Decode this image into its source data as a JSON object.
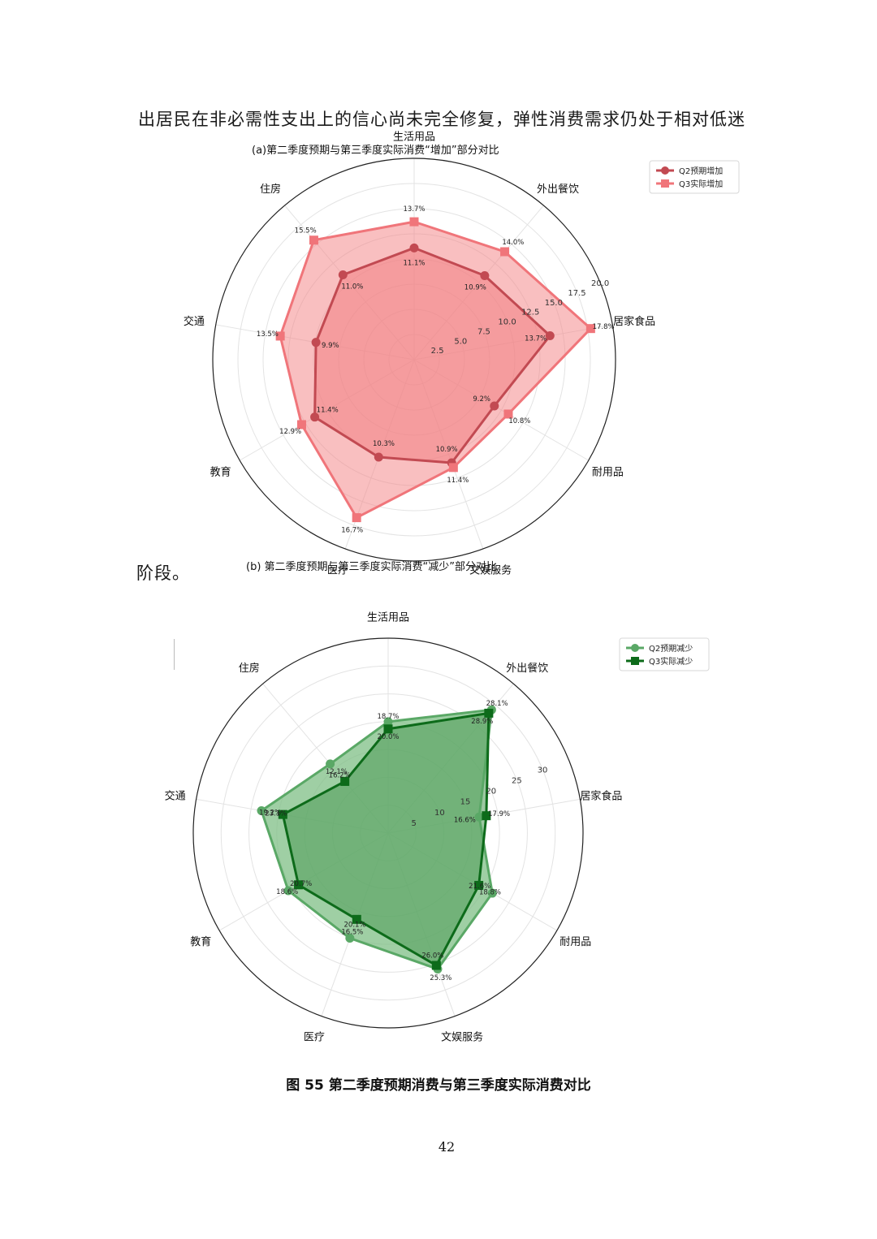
{
  "doc": {
    "paragraph_line": "出居民在非必需性支出上的信心尚未完全修复，弹性消费需求仍处于相对低迷",
    "paragraph_end": "阶段。",
    "figure_caption": "图  55  第二季度预期消费与第三季度实际消费对比",
    "page_number": "42"
  },
  "chart_data": [
    {
      "type": "radar",
      "title": "(a)第二季度预期与第三季度实际消费“增加”部分对比",
      "categories": [
        "生活用品",
        "外出餐饮",
        "居家食品",
        "耐用品",
        "文娱服务",
        "医疗",
        "教育",
        "交通",
        "住房"
      ],
      "rlim": [
        0,
        20
      ],
      "rticks": [
        "2.5",
        "5.0",
        "7.5",
        "10.0",
        "12.5",
        "15.0",
        "17.5",
        "20.0"
      ],
      "legend_position": "top-right",
      "series": [
        {
          "name": "Q2预期增加",
          "marker": "circle",
          "values": [
            11.1,
            10.9,
            13.7,
            9.2,
            10.9,
            10.3,
            11.4,
            9.9,
            11.0
          ],
          "color": "#c24a52",
          "fill": "#ec7276"
        },
        {
          "name": "Q3实际增加",
          "marker": "square",
          "values": [
            13.7,
            14.0,
            17.8,
            10.8,
            11.4,
            16.7,
            12.9,
            13.5,
            15.5
          ],
          "color": "#f0757a",
          "fill": "#f48b8d"
        }
      ],
      "data_labels": {
        "Q2预期增加": [
          "11.1%",
          "10.9%",
          "13.7%",
          "9.2%",
          "10.9%",
          "10.3%",
          "11.4%",
          "9.9%",
          "11.0%"
        ],
        "Q3实际增加": [
          "13.7%",
          "14.0%",
          "17.8%",
          "10.8%",
          "11.4%",
          "16.7%",
          "12.9%",
          "13.5%",
          "15.5%"
        ]
      }
    },
    {
      "type": "radar",
      "title": "(b) 第二季度预期与第三季度实际消费“减少”部分对比",
      "categories": [
        "生活用品",
        "外出餐饮",
        "居家食品",
        "耐用品",
        "文娱服务",
        "医疗",
        "教育",
        "交通",
        "住房"
      ],
      "rlim": [
        0,
        35
      ],
      "rticks": [
        "5",
        "10",
        "15",
        "20",
        "25",
        "30"
      ],
      "legend_position": "top-right",
      "series": [
        {
          "name": "Q2预期减少",
          "marker": "circle",
          "values": [
            20.0,
            28.9,
            16.6,
            21.6,
            26.0,
            20.1,
            20.7,
            23.1,
            16.2
          ],
          "color": "#5aa866",
          "fill": "#7fbf85"
        },
        {
          "name": "Q3实际减少",
          "marker": "square",
          "values": [
            18.7,
            28.1,
            17.9,
            18.8,
            25.3,
            16.5,
            18.6,
            19.2,
            12.1
          ],
          "color": "#0d6b1a",
          "fill": "#4c9a55"
        }
      ],
      "data_labels": {
        "Q2预期减少": [
          "20.0%",
          "28.9%",
          "16.6%",
          "21.6%",
          "26.0%",
          "20.1%",
          "20.7%",
          "23.1%",
          "16.2%"
        ],
        "Q3实际减少": [
          "18.7%",
          "28.1%",
          "17.9%",
          "18.8%",
          "25.3%",
          "16.5%",
          "18.6%",
          "19.2%",
          "12.1%"
        ]
      }
    }
  ]
}
